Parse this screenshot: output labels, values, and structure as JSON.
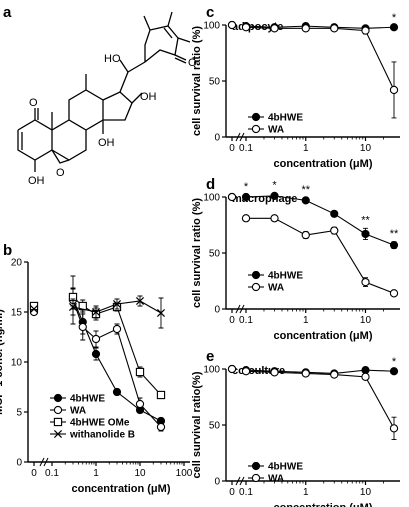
{
  "panel_labels": [
    "a",
    "b",
    "c",
    "d",
    "e"
  ],
  "chart_data": [
    {
      "id": "b",
      "type": "line",
      "title": "",
      "xlabel": "concentration (μM)",
      "ylabel": "MCP-1 conc. (ng/ml)",
      "x_scale": "log",
      "xlim": [
        0.1,
        100
      ],
      "ylim": [
        0,
        20
      ],
      "x_ticks": [
        "0",
        "0.1",
        "1",
        "10",
        "100"
      ],
      "y_ticks": [
        "0",
        "5",
        "10",
        "15",
        "20"
      ],
      "control": {
        "x_label": "0",
        "values": [
          15.2,
          15.0,
          15.6,
          15.3
        ]
      },
      "legend_position": "bottom-left",
      "series": [
        {
          "name": "4bHWE",
          "marker": "filled-circle",
          "x": [
            0.3,
            0.5,
            1,
            3,
            10,
            30
          ],
          "y": [
            16.3,
            14.0,
            10.8,
            7.0,
            5.2,
            4.1
          ],
          "err": [
            1.0,
            1.2,
            0.6,
            0.3,
            0.3,
            0.3
          ]
        },
        {
          "name": "WA",
          "marker": "open-circle",
          "x": [
            0.3,
            0.5,
            1,
            3,
            10,
            30
          ],
          "y": [
            16.2,
            13.5,
            12.3,
            13.3,
            5.8,
            3.5
          ],
          "err": [
            2.4,
            1.3,
            0.8,
            0.5,
            0.6,
            0.4
          ]
        },
        {
          "name": "4bHWE OMe",
          "marker": "open-square",
          "x": [
            0.3,
            0.5,
            1,
            3,
            10,
            30
          ],
          "y": [
            16.5,
            15.6,
            14.8,
            15.5,
            9.0,
            6.7
          ],
          "err": [
            0.9,
            0.6,
            0.6,
            0.4,
            0.5,
            0.3
          ]
        },
        {
          "name": "withanolide B",
          "marker": "cross",
          "x": [
            0.3,
            1,
            3,
            10,
            30
          ],
          "y": [
            15.5,
            15.0,
            15.8,
            16.1,
            14.9
          ],
          "err": [
            0.8,
            0.6,
            0.5,
            0.5,
            1.5
          ]
        }
      ]
    },
    {
      "id": "c",
      "type": "line",
      "title": "adipocyte",
      "xlabel": "concentration (μM)",
      "ylabel": "cell survival ratio (%)",
      "x_scale": "log",
      "xlim": [
        0.1,
        30
      ],
      "ylim": [
        0,
        100
      ],
      "x_ticks": [
        "0",
        "0.1",
        "1",
        "10"
      ],
      "y_ticks": [
        "0",
        "50",
        "100"
      ],
      "control": {
        "x_label": "0",
        "values": [
          100,
          100
        ]
      },
      "legend_position": "bottom-left",
      "annotations": [
        {
          "text": "*",
          "x": 30
        }
      ],
      "series": [
        {
          "name": "4bHWE",
          "marker": "filled-circle",
          "x": [
            0.1,
            0.3,
            1,
            3,
            10,
            30
          ],
          "y": [
            99,
            98,
            99,
            98,
            97,
            98
          ],
          "err": [
            1,
            1,
            1,
            1,
            1,
            1
          ]
        },
        {
          "name": "WA",
          "marker": "open-circle",
          "x": [
            0.1,
            0.3,
            1,
            3,
            10,
            30
          ],
          "y": [
            98,
            97,
            97,
            97,
            95,
            42
          ],
          "err": [
            2,
            1,
            1,
            1,
            3,
            25
          ]
        }
      ]
    },
    {
      "id": "d",
      "type": "line",
      "title": "macrophage",
      "xlabel": "concentration (μM)",
      "ylabel": "cell survival ratio (%)",
      "x_scale": "log",
      "xlim": [
        0.1,
        30
      ],
      "ylim": [
        0,
        100
      ],
      "x_ticks": [
        "0",
        "0.1",
        "1",
        "10"
      ],
      "y_ticks": [
        "0",
        "50",
        "100"
      ],
      "control": {
        "x_label": "0",
        "values": [
          100,
          100
        ]
      },
      "legend_position": "bottom-left",
      "annotations": [
        {
          "text": "*",
          "x": 0.1
        },
        {
          "text": "*",
          "x": 0.3
        },
        {
          "text": "**",
          "x": 1
        },
        {
          "text": "**",
          "x": 10
        },
        {
          "text": "**",
          "x": 30
        }
      ],
      "series": [
        {
          "name": "4bHWE",
          "marker": "filled-circle",
          "x": [
            0.1,
            0.3,
            1,
            3,
            10,
            30
          ],
          "y": [
            100,
            101,
            97,
            85,
            67,
            57
          ],
          "err": [
            2,
            2,
            2,
            2,
            5,
            3
          ]
        },
        {
          "name": "WA",
          "marker": "open-circle",
          "x": [
            0.1,
            0.3,
            1,
            3,
            10,
            30
          ],
          "y": [
            81,
            81,
            66,
            70,
            24,
            14
          ],
          "err": [
            2,
            2,
            3,
            3,
            4,
            2
          ]
        }
      ]
    },
    {
      "id": "e",
      "type": "line",
      "title": "co-culture",
      "xlabel": "concentration (μM)",
      "ylabel": "cell survival ratio(%)",
      "x_scale": "log",
      "xlim": [
        0.1,
        30
      ],
      "ylim": [
        0,
        100
      ],
      "x_ticks": [
        "0",
        "0.1",
        "1",
        "10"
      ],
      "y_ticks": [
        "0",
        "50",
        "100"
      ],
      "control": {
        "x_label": "0",
        "values": [
          100,
          100
        ]
      },
      "legend_position": "bottom-left",
      "annotations": [
        {
          "text": "*",
          "x": 30
        }
      ],
      "series": [
        {
          "name": "4bHWE",
          "marker": "filled-circle",
          "x": [
            0.1,
            0.3,
            1,
            3,
            10,
            30
          ],
          "y": [
            99,
            98,
            97,
            96,
            99,
            98
          ],
          "err": [
            1,
            1,
            1,
            1,
            2,
            1
          ]
        },
        {
          "name": "WA",
          "marker": "open-circle",
          "x": [
            0.1,
            0.3,
            1,
            3,
            10,
            30
          ],
          "y": [
            98,
            97,
            96,
            95,
            93,
            47
          ],
          "err": [
            2,
            1,
            1,
            1,
            2,
            10
          ]
        }
      ]
    }
  ],
  "structure": {
    "labels": {
      "ketone": "O",
      "lactone": "O",
      "epoxide_ring": "O",
      "hydroxyl_a": "OH",
      "hydroxyl_b": "OH",
      "hydroxyl_c": "OH",
      "hydroxyl_d": "HO"
    }
  }
}
